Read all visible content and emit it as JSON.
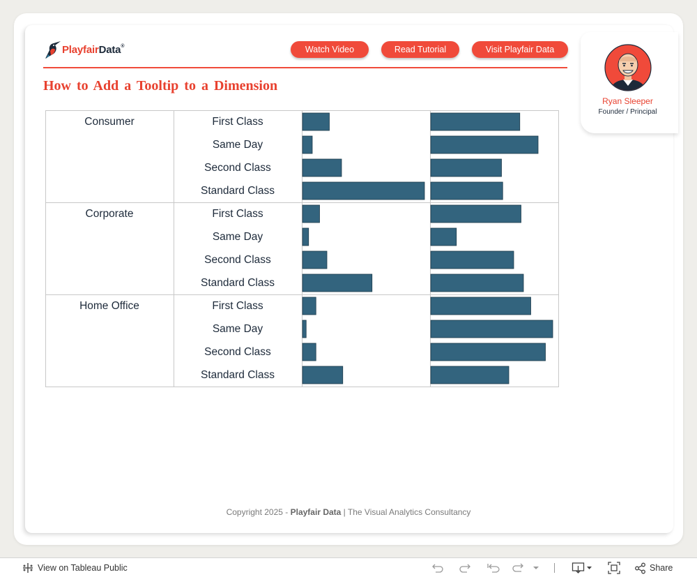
{
  "header": {
    "logo": {
      "part1": "Playfair",
      "part2": "Data",
      "mark": "®"
    },
    "buttons": [
      {
        "label": "Watch Video"
      },
      {
        "label": "Read Tutorial"
      },
      {
        "label": "Visit Playfair Data"
      }
    ],
    "title": "How to Add a Tooltip to a Dimension"
  },
  "profile": {
    "name": "Ryan Sleeper",
    "role": "Founder / Principal"
  },
  "colors": {
    "accent": "#f04a3a",
    "bar": "#33647e",
    "text": "#1d2a3a",
    "grid": "#c8c8c8"
  },
  "chart_data": {
    "type": "bar",
    "orientation": "horizontal",
    "segments": [
      "Consumer",
      "Corporate",
      "Home Office"
    ],
    "categories": [
      "First Class",
      "Same Day",
      "Second Class",
      "Standard Class"
    ],
    "series": [
      {
        "values": [
          [
            22,
            8,
            32,
            100
          ],
          [
            14,
            5,
            20,
            57
          ],
          [
            11,
            3,
            11,
            33
          ]
        ]
      },
      {
        "values": [
          [
            73,
            88,
            58,
            59
          ],
          [
            74,
            21,
            68,
            76
          ],
          [
            82,
            100,
            94,
            64
          ]
        ]
      }
    ],
    "xlim": [
      0,
      100
    ],
    "grid": false
  },
  "footer": {
    "copyright_prefix": "Copyright 2025 - ",
    "copyright_brand": "Playfair Data",
    "copyright_suffix": " | The Visual Analytics Consultancy"
  },
  "toolbar": {
    "view_label": "View on Tableau Public",
    "share_label": "Share",
    "icons": [
      "undo-icon",
      "redo-icon",
      "revert-icon",
      "refresh-icon",
      "download-icon",
      "fullscreen-icon",
      "share-icon"
    ]
  }
}
